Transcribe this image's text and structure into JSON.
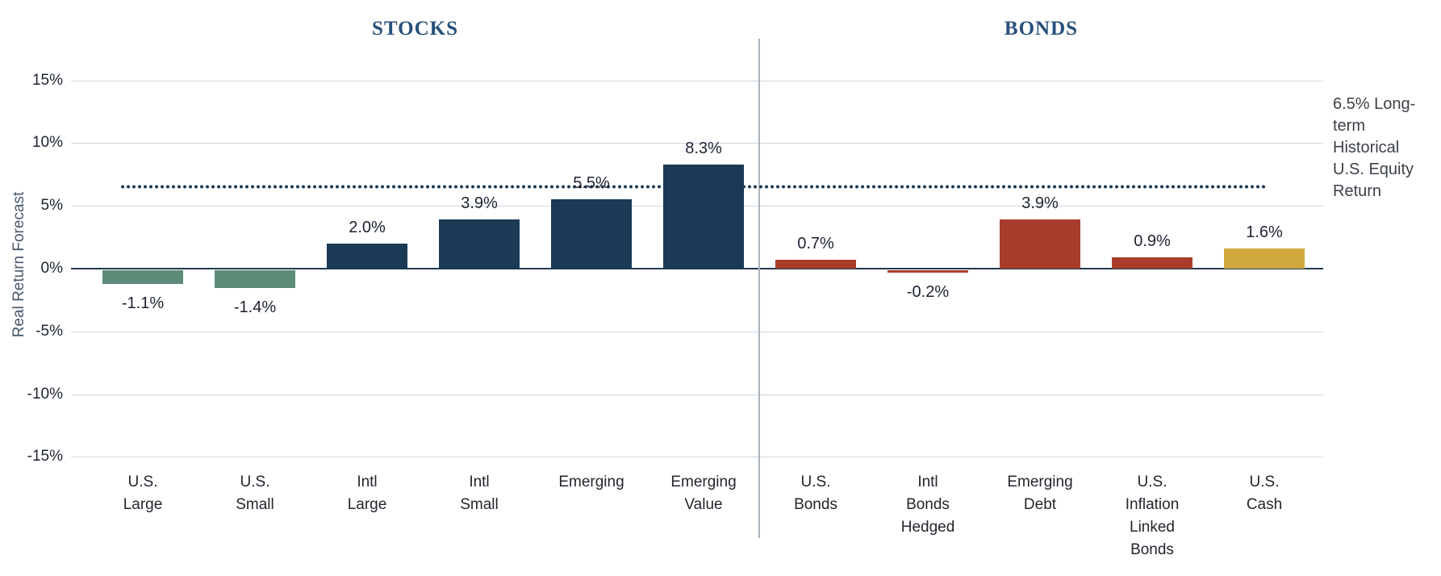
{
  "chart_data": {
    "type": "bar",
    "title": "",
    "ylabel": "Real Return Forecast",
    "ylim": [
      -15,
      15
    ],
    "ytick_interval": 5,
    "yticks": [
      "15%",
      "10%",
      "5%",
      "0%",
      "-5%",
      "-10%",
      "-15%"
    ],
    "grid": true,
    "legend": "none",
    "sections": [
      {
        "title": "STOCKS",
        "bars": [
          {
            "category": "U.S.\nLarge",
            "value": -1.1,
            "label": "-1.1%",
            "color": "#5c8b78"
          },
          {
            "category": "U.S.\nSmall",
            "value": -1.4,
            "label": "-1.4%",
            "color": "#5c8b78"
          },
          {
            "category": "Intl\nLarge",
            "value": 2.0,
            "label": "2.0%",
            "color": "#1b3a55"
          },
          {
            "category": "Intl\nSmall",
            "value": 3.9,
            "label": "3.9%",
            "color": "#1b3a55"
          },
          {
            "category": "Emerging",
            "value": 5.5,
            "label": "5.5%",
            "color": "#1b3a55"
          },
          {
            "category": "Emerging\nValue",
            "value": 8.3,
            "label": "8.3%",
            "color": "#1b3a55"
          }
        ]
      },
      {
        "title": "BONDS",
        "bars": [
          {
            "category": "U.S.\nBonds",
            "value": 0.7,
            "label": "0.7%",
            "color": "#a93d2c"
          },
          {
            "category": "Intl\nBonds\nHedged",
            "value": -0.2,
            "label": "-0.2%",
            "color": "#a93d2c"
          },
          {
            "category": "Emerging\nDebt",
            "value": 3.9,
            "label": "3.9%",
            "color": "#a93d2c"
          },
          {
            "category": "U.S.\nInflation\nLinked\nBonds",
            "value": 0.9,
            "label": "0.9%",
            "color": "#a93d2c"
          },
          {
            "category": "U.S.\nCash",
            "value": 1.6,
            "label": "1.6%",
            "color": "#cfa93d"
          }
        ]
      }
    ],
    "reference_line": {
      "value": 6.5,
      "style": "dotted",
      "color": "#1a3650",
      "annotation": "6.5% Long-\nterm\nHistorical\nU.S. Equity\nReturn"
    }
  },
  "colors": {
    "background": "#ffffff",
    "grid": "#ccd8e3",
    "zero_axis": "#203a54",
    "section_divider": "#abb3ba",
    "section_title": "#27507c",
    "tick_label": "#1b2330",
    "value_label": "#1c2230",
    "category_label": "#23262e",
    "axis_title": "#47596b",
    "annotation_text": "#3c4148",
    "stocks_negative_bar": "#5c8b78",
    "stocks_positive_bar": "#1b3a55",
    "bonds_bar": "#a93d2c",
    "cash_bar": "#cfa93d",
    "reference_line": "#1a3650"
  }
}
